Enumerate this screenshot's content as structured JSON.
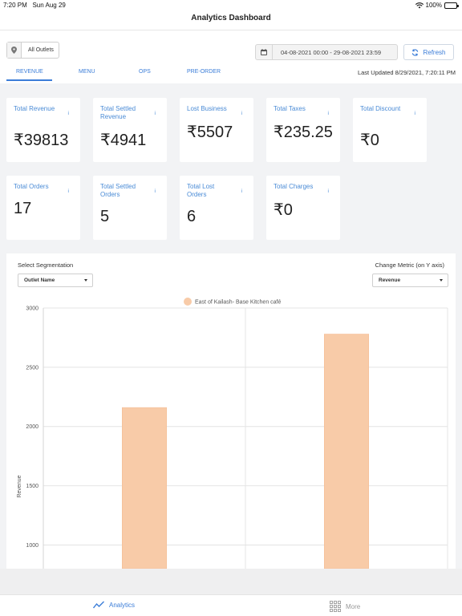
{
  "status_bar": {
    "time": "7:20 PM",
    "date": "Sun Aug 29",
    "battery": "100%"
  },
  "nav": {
    "title": "Analytics Dashboard"
  },
  "filters": {
    "outlet": "All Outlets",
    "date_range": "04-08-2021 00:00 - 29-08-2021 23:59",
    "refresh_label": "Refresh"
  },
  "tabs": [
    {
      "label": "REVENUE",
      "active": true
    },
    {
      "label": "MENU",
      "active": false
    },
    {
      "label": "OPS",
      "active": false
    },
    {
      "label": "PRE-ORDER",
      "active": false
    }
  ],
  "last_updated": "Last Updated 8/29/2021, 7:20:11 PM",
  "info_glyph": "i",
  "cards_row1": [
    {
      "title": "Total Revenue",
      "value": "₹39813"
    },
    {
      "title": "Total Settled Revenue",
      "value": "₹4941"
    },
    {
      "title": "Lost Business",
      "value": "₹5507"
    },
    {
      "title": "Total Taxes",
      "value": "₹235.25"
    },
    {
      "title": "Total Discount",
      "value": "₹0"
    }
  ],
  "cards_row2": [
    {
      "title": "Total Orders",
      "value": "17"
    },
    {
      "title": "Total Settled Orders",
      "value": "5"
    },
    {
      "title": "Total Lost Orders",
      "value": "6"
    },
    {
      "title": "Total Charges",
      "value": "₹0"
    }
  ],
  "segmentation": {
    "label": "Select Segmentation",
    "selected": "Outlet Name"
  },
  "metric": {
    "label": "Change Metric (on Y axis)",
    "selected": "Revenue"
  },
  "chart_data": {
    "type": "bar",
    "legend_position": "top",
    "series": [
      {
        "name": "East of Kailash- Base Kitchen café",
        "color": "#f8cba8",
        "values": [
          2160,
          2780
        ]
      }
    ],
    "categories": [
      "",
      ""
    ],
    "ylabel": "Revenue",
    "yticks": [
      1000,
      1500,
      2000,
      2500,
      3000
    ],
    "ylim": [
      800,
      3000
    ],
    "grid": true
  },
  "bottom_nav": [
    {
      "label": "Analytics",
      "icon": "analytics-chart-icon",
      "active": true
    },
    {
      "label": "More",
      "icon": "grid-more-icon",
      "active": false
    }
  ],
  "colors": {
    "accent": "#3b7dd8",
    "bar": "#f8cba8",
    "bg": "#f2f3f5"
  }
}
